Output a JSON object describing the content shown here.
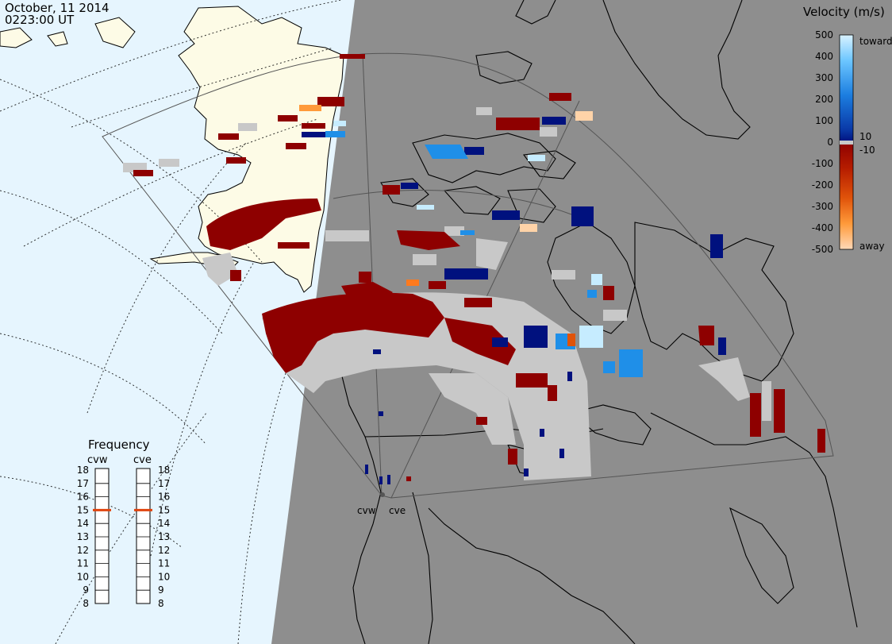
{
  "header": {
    "date": "October, 11 2014",
    "time": "0223:00 UT"
  },
  "velocity_scale": {
    "title": "Velocity (m/s)",
    "ticks": [
      "500",
      "400",
      "300",
      "200",
      "100",
      "0",
      "-100",
      "-200",
      "-300",
      "-400",
      "-500"
    ],
    "toward_label": "toward",
    "away_label": "away",
    "gap_upper_label": "10",
    "gap_lower_label": "-10",
    "colors": {
      "toward_light": "#c6ecff",
      "toward_mid": "#1f8fe8",
      "toward_dark": "#00117e",
      "away_dark": "#8e0000",
      "away_mid": "#e0530a",
      "away_light": "#ffd3a8",
      "ground_scatter": "#c8c8c8"
    }
  },
  "frequency_panel": {
    "title": "Frequency",
    "radar_left": "cvw",
    "radar_right": "cve",
    "ticks": [
      "18",
      "17",
      "16",
      "15",
      "14",
      "13",
      "12",
      "11",
      "10",
      "9",
      "8"
    ],
    "left_value": 15,
    "right_value": 15,
    "marker_color": "#e0440e"
  },
  "radars": [
    {
      "name": "cvw",
      "label": "cvw"
    },
    {
      "name": "cve",
      "label": "cve"
    }
  ],
  "map_colors": {
    "day_ocean": "#e6f5fe",
    "day_land": "#fdfbe6",
    "night": "#8e8e8e",
    "coastline": "#000000"
  }
}
